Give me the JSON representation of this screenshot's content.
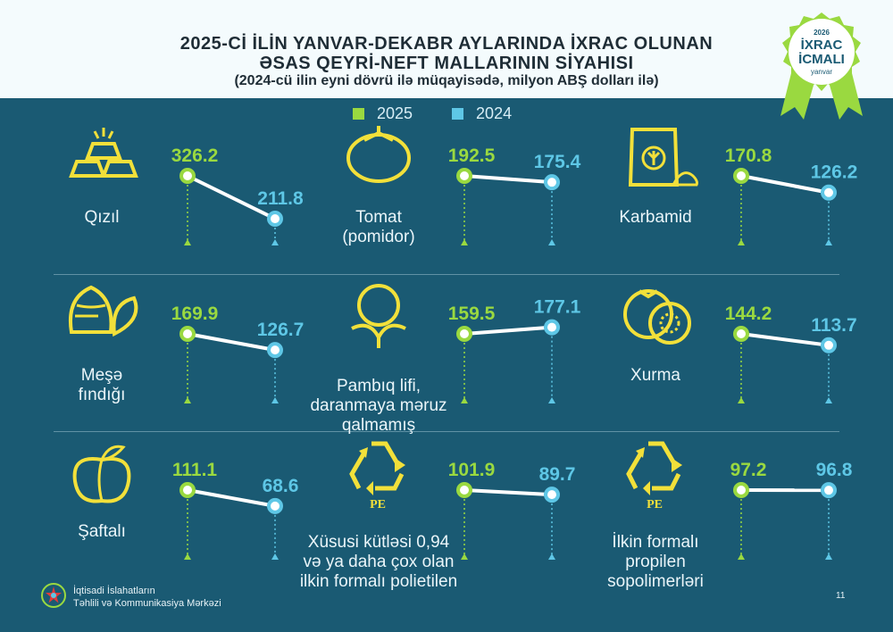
{
  "header": {
    "title_line1": "2025-Cİ İLİN YANVAR-DEKABR AYLARINDA İXRAC OLUNAN",
    "title_line2": "ƏSAS QEYRİ-NEFT MALLARININ SİYAHISI",
    "subtitle": "(2024-cü ilin eyni dövrü ilə müqayisədə, milyon ABŞ dolları ilə)"
  },
  "badge": {
    "year": "2026",
    "line1": "İXRAC",
    "line2": "İCMALI",
    "month": "yanvar"
  },
  "colors": {
    "y2025": "#9ad940",
    "y2024": "#5ec7e6",
    "background": "#1a5a73",
    "header_bg": "#f4fbfd"
  },
  "chart_data": {
    "type": "line",
    "title": "2025-Cİ İLİN YANVAR-DEKABR AYLARINDA İXRAC OLUNAN ƏSAS QEYRİ-NEFT MALLARININ SİYAHISI",
    "subtitle": "(2024-cü ilin eyni dövrü ilə müqayisədə, milyon ABŞ dolları ilə)",
    "legend": [
      "2025",
      "2024"
    ],
    "legend_position": "top-center",
    "series_names": [
      "2025",
      "2024"
    ],
    "items": [
      {
        "name_lines": [
          "Qızıl"
        ],
        "v2025": 326.2,
        "v2024": 211.8,
        "icon": "gold-bars-icon"
      },
      {
        "name_lines": [
          "Tomat",
          "(pomidor)"
        ],
        "v2025": 192.5,
        "v2024": 175.4,
        "icon": "tomato-icon"
      },
      {
        "name_lines": [
          "Karbamid"
        ],
        "v2025": 170.8,
        "v2024": 126.2,
        "icon": "fertilizer-bag-icon"
      },
      {
        "name_lines": [
          "Meşə",
          "fındığı"
        ],
        "v2025": 169.9,
        "v2024": 126.7,
        "icon": "hazelnut-icon"
      },
      {
        "name_lines": [
          "Pambıq lifi,",
          "daranmaya məruz",
          "qalmamış"
        ],
        "v2025": 159.5,
        "v2024": 177.1,
        "icon": "cotton-icon"
      },
      {
        "name_lines": [
          "Xurma"
        ],
        "v2025": 144.2,
        "v2024": 113.7,
        "icon": "persimmon-icon"
      },
      {
        "name_lines": [
          "Şaftalı"
        ],
        "v2025": 111.1,
        "v2024": 68.6,
        "icon": "peach-icon"
      },
      {
        "name_lines": [
          "Xüsusi kütləsi 0,94",
          "və ya daha çox olan",
          "ilkin formalı polietilen"
        ],
        "v2025": 101.9,
        "v2024": 89.7,
        "icon": "recycle-pe-icon"
      },
      {
        "name_lines": [
          "İlkin formalı",
          "propilen",
          "sopolimerləri"
        ],
        "v2025": 97.2,
        "v2024": 96.8,
        "icon": "recycle-pe-icon"
      }
    ],
    "icon_label": "PE"
  },
  "footer": {
    "org_line1": "İqtisadi İslahatların",
    "org_line2": "Təhlili və Kommunikasiya Mərkəzi",
    "page_number": "11"
  }
}
